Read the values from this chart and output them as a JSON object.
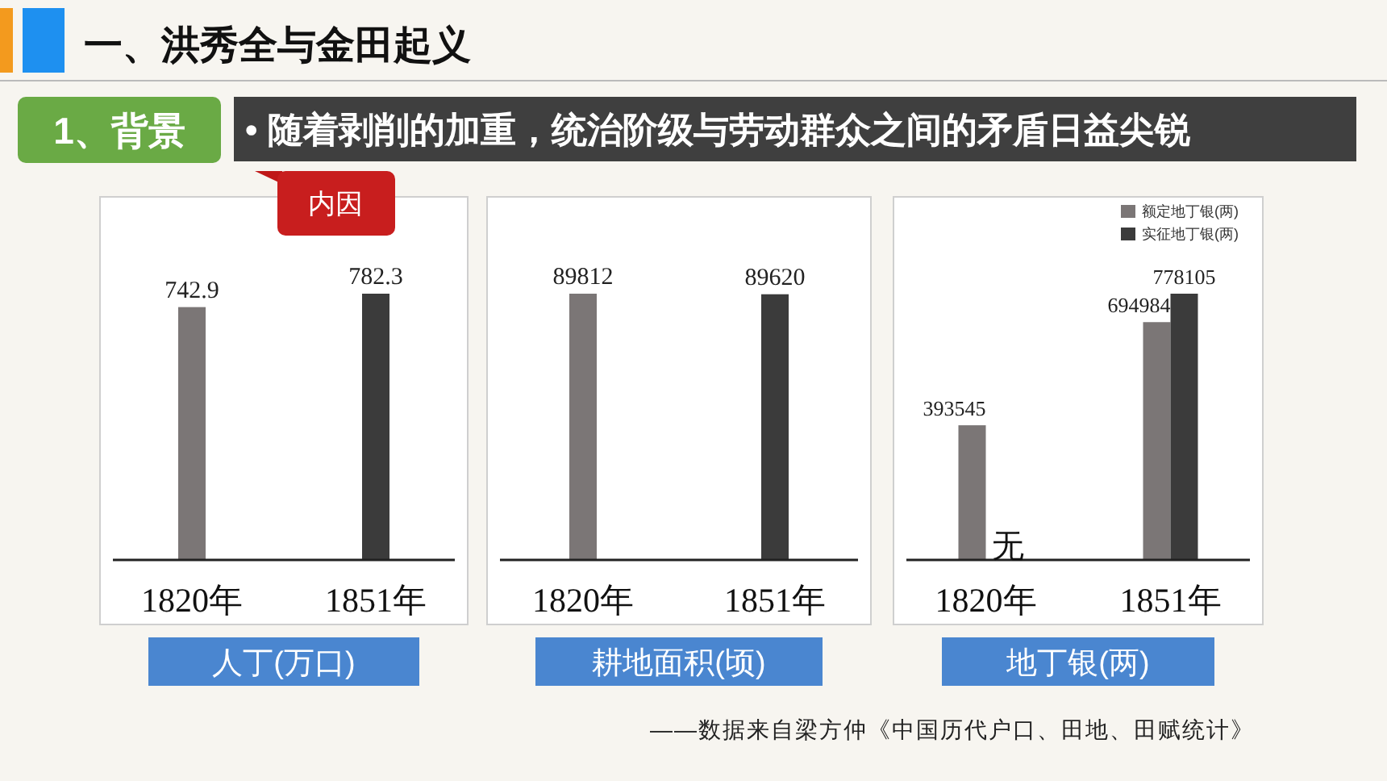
{
  "chart_data": [
    {
      "type": "bar",
      "categories": [
        "1820年",
        "1851年"
      ],
      "series": [
        {
          "colors": [
            "#7b7676",
            "#3b3b3b"
          ],
          "values": [
            742.9,
            782.3
          ]
        }
      ],
      "data_labels": true,
      "xlabel": "人丁(万口)",
      "annotations": [
        "一、洪秀全与金田起义",
        "1、背景",
        "• 随着剥削的加重，统治阶级与劳动群众之间的矛盾日益尖锐",
        "内因"
      ]
    },
    {
      "type": "bar",
      "categories": [
        "1820年",
        "1851年"
      ],
      "series": [
        {
          "colors": [
            "#7b7676",
            "#3b3b3b"
          ],
          "values": [
            89812,
            89620
          ]
        }
      ],
      "data_labels": true,
      "xlabel": "耕地面积(顷)"
    },
    {
      "type": "bar",
      "categories": [
        "1820年",
        "1851年"
      ],
      "series": [
        {
          "name": "额定地丁银(两)",
          "color": "#7b7676",
          "values": [
            393545,
            694984
          ]
        },
        {
          "name": "实征地丁银(两)",
          "color": "#3b3b3b",
          "values": [
            null,
            778105
          ]
        }
      ],
      "data_labels": true,
      "legend": "top right",
      "xlabel": "地丁银(两)",
      "annotations": [
        {
          "text": "无",
          "x": "1820年",
          "y": 0
        },
        "——数据来自梁方仲《中国历代户口、田地、田赋统计》"
      ]
    }
  ]
}
